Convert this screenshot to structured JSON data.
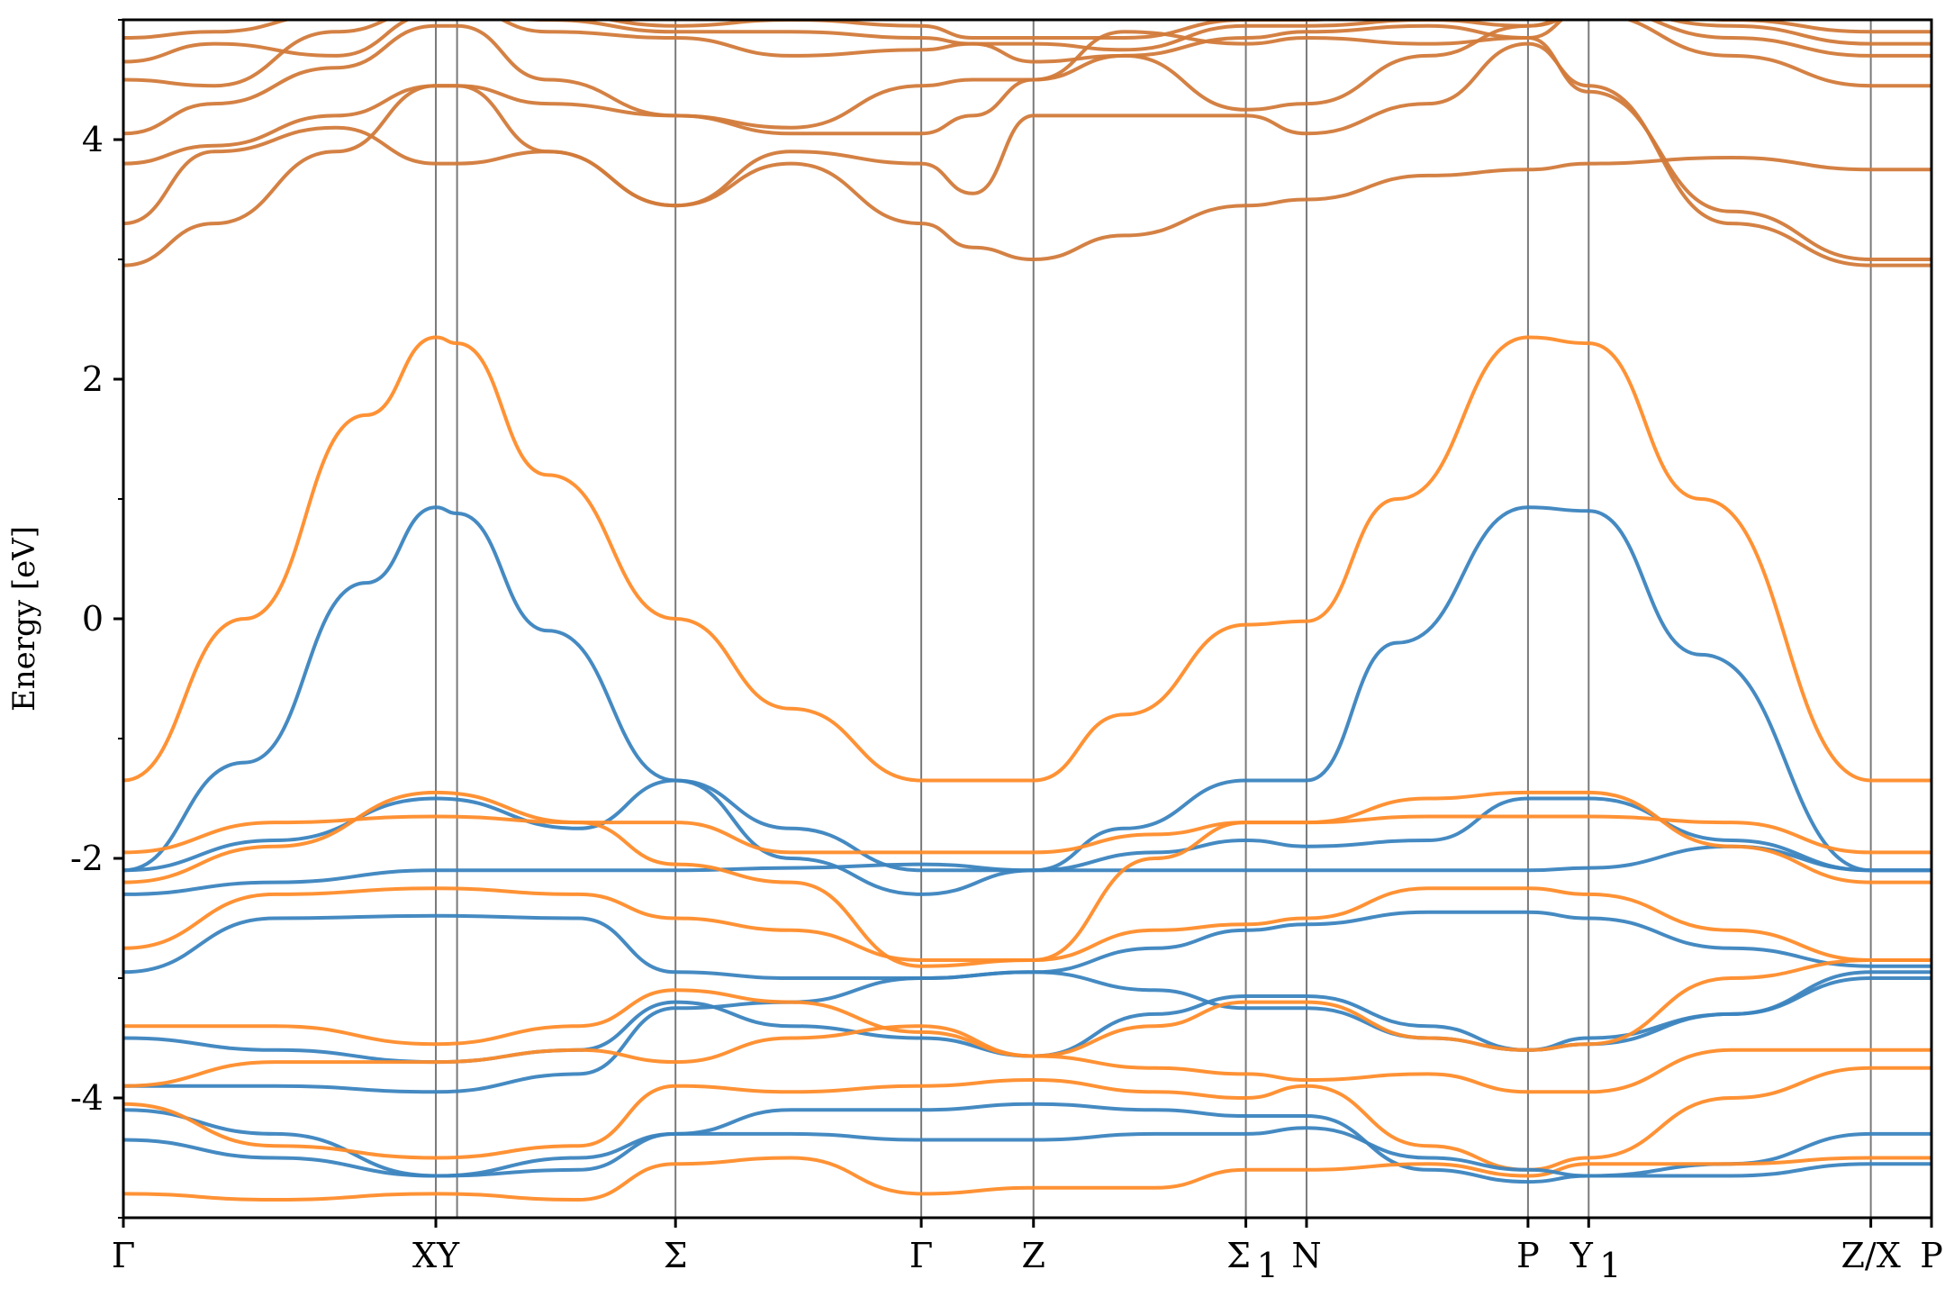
{
  "chart_data": {
    "type": "line",
    "title": "",
    "xlabel": "",
    "ylabel": "Energy [eV]",
    "ylim": [
      -5,
      5
    ],
    "y_ticks": [
      {
        "value": -4,
        "label": "-4"
      },
      {
        "value": -2,
        "label": "-2"
      },
      {
        "value": 0,
        "label": "0"
      },
      {
        "value": 2,
        "label": "2"
      },
      {
        "value": 4,
        "label": "4"
      }
    ],
    "y_minor_ticks": [
      -5,
      -3,
      -1,
      1,
      3,
      5
    ],
    "xlim": [
      0,
      5.96
    ],
    "kpoints": [
      {
        "x": 0.0,
        "label": "Γ",
        "sub": ""
      },
      {
        "x": 1.03,
        "label": "XY",
        "sub": ""
      },
      {
        "x": 1.82,
        "label": "Σ",
        "sub": ""
      },
      {
        "x": 2.63,
        "label": "Γ",
        "sub": ""
      },
      {
        "x": 3.0,
        "label": "Z",
        "sub": ""
      },
      {
        "x": 3.7,
        "label": "Σ",
        "sub": "1"
      },
      {
        "x": 3.9,
        "label": "N",
        "sub": ""
      },
      {
        "x": 4.63,
        "label": "P",
        "sub": ""
      },
      {
        "x": 4.83,
        "label": "Y",
        "sub": "1"
      },
      {
        "x": 5.76,
        "label": "Z/X",
        "sub": ""
      },
      {
        "x": 5.96,
        "label": "P",
        "sub": ""
      }
    ],
    "vlines": [
      1.03,
      1.1,
      1.82,
      2.63,
      3.0,
      3.7,
      3.9,
      4.63,
      4.83,
      5.76
    ],
    "grid": false,
    "legend": "none",
    "colors": {
      "spin_down": "#3b84bf",
      "spin_up": "#ff8c2a",
      "overlap": "#d27a3a"
    },
    "series": [
      {
        "color": "spin_down",
        "x": [
          0.0,
          0.4,
          0.8,
          1.03,
          1.1,
          1.4,
          1.82,
          2.2,
          2.63,
          3.0,
          3.3,
          3.7,
          3.9,
          4.2,
          4.63,
          4.83,
          5.2,
          5.76
        ],
        "y": [
          -2.1,
          -1.2,
          0.3,
          0.93,
          0.88,
          -0.1,
          -1.35,
          -1.75,
          -2.1,
          -2.1,
          -1.75,
          -1.35,
          -1.35,
          -0.2,
          0.93,
          0.9,
          -0.3,
          -2.1
        ]
      },
      {
        "color": "spin_up",
        "x": [
          0.0,
          0.4,
          0.8,
          1.03,
          1.1,
          1.4,
          1.82,
          2.2,
          2.63,
          3.0,
          3.3,
          3.7,
          3.9,
          4.2,
          4.63,
          4.83,
          5.2,
          5.76
        ],
        "y": [
          -1.35,
          0.0,
          1.7,
          2.35,
          2.3,
          1.2,
          0.0,
          -0.75,
          -1.35,
          -1.35,
          -0.8,
          -0.05,
          -0.02,
          1.0,
          2.35,
          2.3,
          1.0,
          -1.35
        ]
      },
      {
        "color": "spin_down",
        "x": [
          0.0,
          0.5,
          1.03,
          1.5,
          1.82,
          2.2,
          2.63,
          3.0,
          3.4,
          3.7,
          3.9,
          4.3,
          4.63,
          4.83,
          5.3,
          5.76
        ],
        "y": [
          -2.1,
          -1.85,
          -1.5,
          -1.75,
          -1.35,
          -2.0,
          -2.3,
          -2.1,
          -1.95,
          -1.85,
          -1.9,
          -1.85,
          -1.5,
          -1.5,
          -1.85,
          -2.1
        ]
      },
      {
        "color": "spin_down",
        "x": [
          0.0,
          0.5,
          1.03,
          1.5,
          1.82,
          2.2,
          2.63,
          3.0,
          3.4,
          3.7,
          3.9,
          4.3,
          4.63,
          4.83,
          5.3,
          5.76
        ],
        "y": [
          -2.3,
          -2.2,
          -2.1,
          -2.1,
          -2.1,
          -2.08,
          -2.05,
          -2.1,
          -2.1,
          -2.1,
          -2.1,
          -2.1,
          -2.1,
          -2.08,
          -1.9,
          -2.1
        ]
      },
      {
        "color": "spin_down",
        "x": [
          0.0,
          0.5,
          1.03,
          1.5,
          1.82,
          2.2,
          2.63,
          3.0,
          3.4,
          3.7,
          3.9,
          4.3,
          4.63,
          4.83,
          5.3,
          5.76
        ],
        "y": [
          -2.95,
          -2.5,
          -2.48,
          -2.5,
          -2.95,
          -3.0,
          -3.0,
          -2.95,
          -2.75,
          -2.6,
          -2.55,
          -2.45,
          -2.45,
          -2.5,
          -2.75,
          -2.9
        ]
      },
      {
        "color": "spin_up",
        "x": [
          0.0,
          0.5,
          1.03,
          1.5,
          1.82,
          2.2,
          2.63,
          3.0,
          3.4,
          3.7,
          3.9,
          4.3,
          4.63,
          4.83,
          5.3,
          5.76
        ],
        "y": [
          -1.95,
          -1.7,
          -1.65,
          -1.7,
          -1.7,
          -1.95,
          -1.95,
          -1.95,
          -1.8,
          -1.7,
          -1.7,
          -1.65,
          -1.65,
          -1.65,
          -1.7,
          -1.95
        ]
      },
      {
        "color": "spin_up",
        "x": [
          0.0,
          0.5,
          1.03,
          1.5,
          1.82,
          2.2,
          2.63,
          3.0,
          3.4,
          3.7,
          3.9,
          4.3,
          4.63,
          4.83,
          5.3,
          5.76
        ],
        "y": [
          -2.75,
          -2.3,
          -2.25,
          -2.3,
          -2.5,
          -2.6,
          -2.85,
          -2.85,
          -2.6,
          -2.55,
          -2.5,
          -2.25,
          -2.25,
          -2.3,
          -2.6,
          -2.85
        ]
      },
      {
        "color": "spin_up",
        "x": [
          0.0,
          0.5,
          1.03,
          1.5,
          1.82,
          2.2,
          2.63,
          3.0,
          3.4,
          3.7,
          3.9,
          4.3,
          4.63,
          4.83,
          5.3,
          5.76
        ],
        "y": [
          -2.2,
          -1.9,
          -1.45,
          -1.7,
          -2.05,
          -2.2,
          -2.9,
          -2.85,
          -2.0,
          -1.7,
          -1.7,
          -1.5,
          -1.45,
          -1.45,
          -1.9,
          -2.2
        ]
      },
      {
        "color": "spin_down",
        "x": [
          0.0,
          0.5,
          1.03,
          1.5,
          1.82,
          2.2,
          2.63,
          3.0,
          3.4,
          3.7,
          3.9,
          4.3,
          4.63,
          4.83,
          5.3,
          5.76
        ],
        "y": [
          -3.5,
          -3.6,
          -3.7,
          -3.6,
          -3.2,
          -3.4,
          -3.5,
          -3.65,
          -3.3,
          -3.15,
          -3.15,
          -3.4,
          -3.6,
          -3.5,
          -3.3,
          -3.0
        ]
      },
      {
        "color": "spin_down",
        "x": [
          0.0,
          0.5,
          1.03,
          1.5,
          1.82,
          2.2,
          2.63,
          3.0,
          3.4,
          3.7,
          3.9,
          4.3,
          4.63,
          4.83,
          5.3,
          5.76
        ],
        "y": [
          -3.9,
          -3.9,
          -3.95,
          -3.8,
          -3.25,
          -3.2,
          -3.0,
          -2.95,
          -3.1,
          -3.25,
          -3.25,
          -3.5,
          -3.6,
          -3.55,
          -3.3,
          -2.95
        ]
      },
      {
        "color": "spin_up",
        "x": [
          0.0,
          0.5,
          1.03,
          1.5,
          1.82,
          2.2,
          2.63,
          3.0,
          3.4,
          3.7,
          3.9,
          4.3,
          4.63,
          4.83,
          5.3,
          5.76
        ],
        "y": [
          -3.4,
          -3.4,
          -3.55,
          -3.4,
          -3.1,
          -3.2,
          -3.45,
          -3.65,
          -3.4,
          -3.2,
          -3.2,
          -3.5,
          -3.6,
          -3.55,
          -3.0,
          -2.85
        ]
      },
      {
        "color": "spin_up",
        "x": [
          0.0,
          0.5,
          1.03,
          1.5,
          1.82,
          2.2,
          2.63,
          3.0,
          3.4,
          3.7,
          3.9,
          4.3,
          4.63,
          4.83,
          5.3,
          5.76
        ],
        "y": [
          -3.9,
          -3.7,
          -3.7,
          -3.6,
          -3.7,
          -3.5,
          -3.4,
          -3.65,
          -3.75,
          -3.8,
          -3.85,
          -3.8,
          -3.95,
          -3.95,
          -3.6,
          -3.6
        ]
      },
      {
        "color": "spin_down",
        "x": [
          0.0,
          0.5,
          1.03,
          1.5,
          1.82,
          2.2,
          2.63,
          3.0,
          3.4,
          3.7,
          3.9,
          4.3,
          4.63,
          4.83,
          5.3,
          5.76
        ],
        "y": [
          -4.1,
          -4.3,
          -4.65,
          -4.5,
          -4.3,
          -4.1,
          -4.1,
          -4.05,
          -4.1,
          -4.15,
          -4.15,
          -4.6,
          -4.7,
          -4.65,
          -4.55,
          -4.3
        ]
      },
      {
        "color": "spin_up",
        "x": [
          0.0,
          0.5,
          1.03,
          1.5,
          1.82,
          2.2,
          2.63,
          3.0,
          3.4,
          3.7,
          3.9,
          4.3,
          4.63,
          4.83,
          5.3,
          5.76
        ],
        "y": [
          -4.05,
          -4.4,
          -4.5,
          -4.4,
          -3.9,
          -3.95,
          -3.9,
          -3.85,
          -3.95,
          -4.0,
          -3.9,
          -4.4,
          -4.6,
          -4.5,
          -4.0,
          -3.75
        ]
      },
      {
        "color": "spin_up",
        "x": [
          0.0,
          0.5,
          1.03,
          1.5,
          1.82,
          2.2,
          2.63,
          3.0,
          3.4,
          3.7,
          3.9,
          4.3,
          4.63,
          4.83,
          5.3,
          5.76
        ],
        "y": [
          -4.8,
          -4.85,
          -4.8,
          -4.85,
          -4.55,
          -4.5,
          -4.8,
          -4.75,
          -4.75,
          -4.6,
          -4.6,
          -4.55,
          -4.65,
          -4.55,
          -4.55,
          -4.5
        ]
      },
      {
        "color": "spin_down",
        "x": [
          0.0,
          0.5,
          1.03,
          1.5,
          1.82,
          2.2,
          2.63,
          3.0,
          3.4,
          3.7,
          3.9,
          4.3,
          4.63,
          4.83,
          5.3,
          5.76
        ],
        "y": [
          -4.35,
          -4.5,
          -4.65,
          -4.6,
          -4.3,
          -4.3,
          -4.35,
          -4.35,
          -4.3,
          -4.3,
          -4.25,
          -4.5,
          -4.6,
          -4.65,
          -4.65,
          -4.55
        ]
      },
      {
        "color": "overlap",
        "x": [
          0.0,
          0.3,
          0.7,
          1.03,
          1.1,
          1.4,
          1.82,
          2.2,
          2.63,
          2.8,
          3.0,
          3.3,
          3.7,
          3.9,
          4.3,
          4.63,
          4.83,
          5.3,
          5.76
        ],
        "y": [
          2.95,
          3.3,
          3.9,
          4.45,
          4.45,
          4.3,
          4.2,
          4.05,
          4.05,
          4.2,
          4.5,
          4.9,
          4.8,
          4.85,
          4.8,
          4.85,
          4.4,
          3.4,
          3.0
        ]
      },
      {
        "color": "overlap",
        "x": [
          0.0,
          0.3,
          0.7,
          1.03,
          1.1,
          1.4,
          1.82,
          2.2,
          2.63,
          2.8,
          3.0,
          3.3,
          3.7,
          3.9,
          4.3,
          4.63,
          4.83,
          5.3,
          5.76
        ],
        "y": [
          3.3,
          3.9,
          4.1,
          3.8,
          3.8,
          3.9,
          3.45,
          3.8,
          3.3,
          3.1,
          3.0,
          3.2,
          3.45,
          3.5,
          3.7,
          3.75,
          3.8,
          3.85,
          3.75
        ]
      },
      {
        "color": "overlap",
        "x": [
          0.0,
          0.3,
          0.7,
          1.03,
          1.1,
          1.4,
          1.82,
          2.2,
          2.63,
          2.8,
          3.0,
          3.3,
          3.7,
          3.9,
          4.3,
          4.63,
          4.83,
          5.3,
          5.76
        ],
        "y": [
          3.8,
          3.95,
          4.2,
          4.45,
          4.45,
          3.9,
          3.45,
          3.9,
          3.8,
          3.55,
          4.2,
          4.2,
          4.2,
          4.05,
          4.3,
          4.8,
          4.45,
          3.3,
          2.95
        ]
      },
      {
        "color": "overlap",
        "x": [
          0.0,
          0.3,
          0.7,
          1.03,
          1.1,
          1.4,
          1.82,
          2.2,
          2.63,
          2.8,
          3.0,
          3.3,
          3.7,
          3.9,
          4.3,
          4.63,
          4.83,
          5.3,
          5.76
        ],
        "y": [
          4.05,
          4.3,
          4.6,
          4.95,
          4.95,
          4.5,
          4.2,
          4.1,
          4.45,
          4.5,
          4.5,
          4.7,
          4.25,
          4.3,
          4.7,
          4.95,
          5.05,
          4.7,
          4.45
        ]
      },
      {
        "color": "overlap",
        "x": [
          0.0,
          0.3,
          0.7,
          1.03,
          1.1,
          1.4,
          1.82,
          2.2,
          2.63,
          2.8,
          3.0,
          3.3,
          3.7,
          3.9,
          4.3,
          4.63,
          4.83,
          5.3,
          5.76
        ],
        "y": [
          4.5,
          4.45,
          4.9,
          5.1,
          5.1,
          4.9,
          4.85,
          4.7,
          4.75,
          4.8,
          4.65,
          4.7,
          4.85,
          4.9,
          4.95,
          4.85,
          5.1,
          4.95,
          4.8
        ]
      },
      {
        "color": "overlap",
        "x": [
          0.0,
          0.3,
          0.7,
          1.03,
          1.1,
          1.4,
          1.82,
          2.2,
          2.63,
          2.8,
          3.0,
          3.3,
          3.7,
          3.9,
          4.3,
          4.63,
          4.83,
          5.3,
          5.76
        ],
        "y": [
          4.65,
          4.8,
          4.7,
          5.05,
          5.05,
          5.0,
          4.9,
          4.9,
          4.85,
          4.8,
          4.8,
          4.75,
          4.95,
          4.95,
          5.0,
          4.95,
          5.1,
          4.85,
          4.7
        ]
      },
      {
        "color": "overlap",
        "x": [
          0.0,
          0.3,
          0.7,
          1.03,
          1.1,
          1.4,
          1.82,
          2.2,
          2.63,
          2.8,
          3.0,
          3.3,
          3.7,
          3.9,
          4.3,
          4.63,
          4.83,
          5.3,
          5.76
        ],
        "y": [
          4.85,
          4.9,
          5.05,
          5.1,
          5.1,
          5.05,
          4.95,
          5.0,
          4.95,
          4.85,
          4.85,
          4.85,
          5.0,
          5.0,
          5.1,
          5.05,
          5.1,
          5.0,
          4.9
        ]
      }
    ]
  }
}
